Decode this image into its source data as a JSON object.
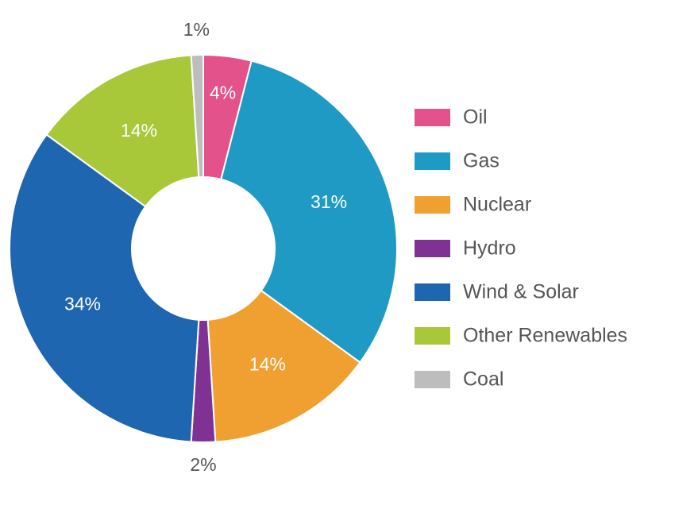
{
  "chart_data": {
    "type": "donut",
    "categories": [
      "Oil",
      "Gas",
      "Nuclear",
      "Hydro",
      "Wind & Solar",
      "Other Renewables",
      "Coal"
    ],
    "values": [
      4,
      31,
      14,
      2,
      34,
      14,
      1
    ],
    "value_labels": [
      "4%",
      "31%",
      "14%",
      "2%",
      "34%",
      "14%",
      "1%"
    ],
    "colors": [
      "#e4528c",
      "#1f9ac4",
      "#f0a030",
      "#7f3194",
      "#1f66b0",
      "#a8c83a",
      "#bdbdbd"
    ],
    "legend": "right"
  }
}
